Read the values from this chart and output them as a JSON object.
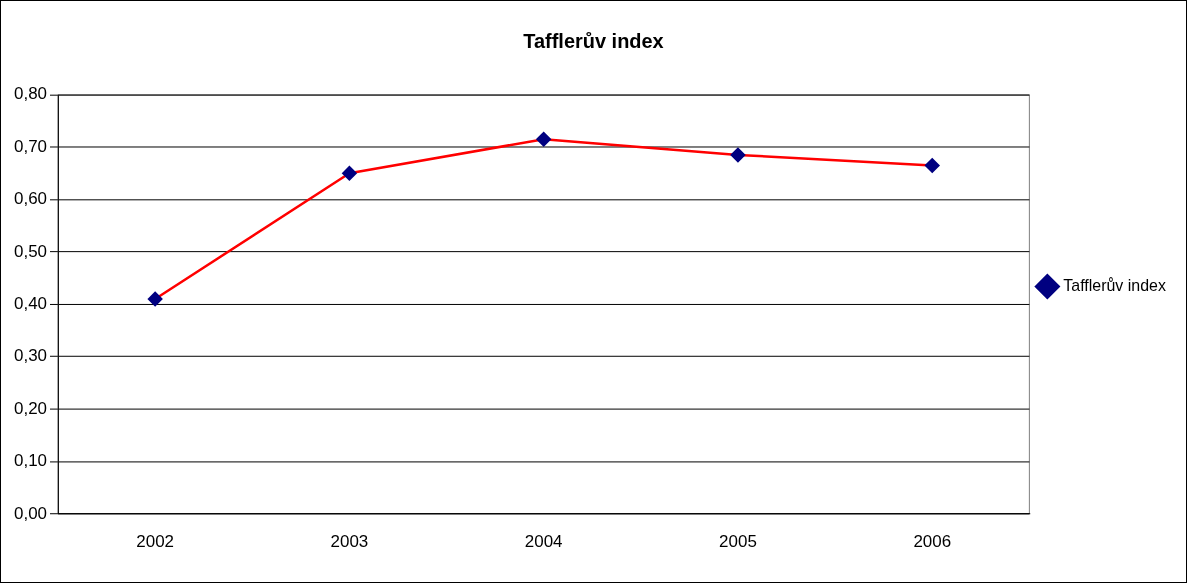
{
  "chart_data": {
    "type": "line",
    "title": "Tafflerův index",
    "categories": [
      "2002",
      "2003",
      "2004",
      "2005",
      "2006"
    ],
    "series": [
      {
        "name": "Tafflerův index",
        "color": "#ff0000",
        "values": [
          0.41,
          0.65,
          0.715,
          0.685,
          0.665
        ]
      }
    ],
    "ylim": [
      0,
      0.8
    ],
    "yticks": [
      {
        "value": 0,
        "label": "0,00"
      },
      {
        "value": 0.1,
        "label": "0,10"
      },
      {
        "value": 0.2,
        "label": "0,20"
      },
      {
        "value": 0.3,
        "label": "0,30"
      },
      {
        "value": 0.4,
        "label": "0,40"
      },
      {
        "value": 0.5,
        "label": "0,50"
      },
      {
        "value": 0.6,
        "label": "0,60"
      },
      {
        "value": 0.7,
        "label": "0,70"
      },
      {
        "value": 0.8,
        "label": "0,80"
      }
    ],
    "grid": "y",
    "legend": "right",
    "marker": "diamond",
    "line_style": "solid"
  }
}
